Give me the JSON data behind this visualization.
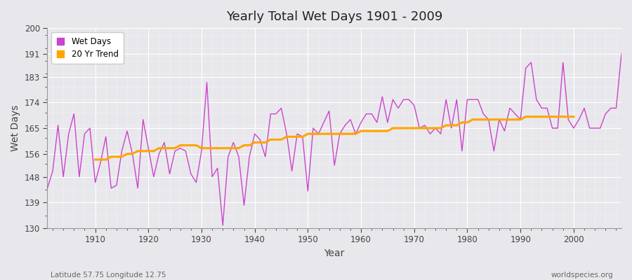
{
  "title": "Yearly Total Wet Days 1901 - 2009",
  "xlabel": "Year",
  "ylabel": "Wet Days",
  "subtitle_left": "Latitude 57.75 Longitude 12.75",
  "subtitle_right": "worldspecies.org",
  "ylim": [
    130,
    200
  ],
  "yticks": [
    130,
    139,
    148,
    156,
    165,
    174,
    183,
    191,
    200
  ],
  "xlim": [
    1901,
    2009
  ],
  "wet_days_color": "#CC44CC",
  "trend_color": "#FFA500",
  "bg_color": "#E8E8EC",
  "plot_bg_color": "#E8E8EC",
  "grid_color": "#FFFFFF",
  "years": [
    1901,
    1902,
    1903,
    1904,
    1905,
    1906,
    1907,
    1908,
    1909,
    1910,
    1911,
    1912,
    1913,
    1914,
    1915,
    1916,
    1917,
    1918,
    1919,
    1920,
    1921,
    1922,
    1923,
    1924,
    1925,
    1926,
    1927,
    1928,
    1929,
    1930,
    1931,
    1932,
    1933,
    1934,
    1935,
    1936,
    1937,
    1938,
    1939,
    1940,
    1941,
    1942,
    1943,
    1944,
    1945,
    1946,
    1947,
    1948,
    1949,
    1950,
    1951,
    1952,
    1953,
    1954,
    1955,
    1956,
    1957,
    1958,
    1959,
    1960,
    1961,
    1962,
    1963,
    1964,
    1965,
    1966,
    1967,
    1968,
    1969,
    1970,
    1971,
    1972,
    1973,
    1974,
    1975,
    1976,
    1977,
    1978,
    1979,
    1980,
    1981,
    1982,
    1983,
    1984,
    1985,
    1986,
    1987,
    1988,
    1989,
    1990,
    1991,
    1992,
    1993,
    1994,
    1995,
    1996,
    1997,
    1998,
    1999,
    2000,
    2001,
    2002,
    2003,
    2004,
    2005,
    2006,
    2007,
    2008,
    2009
  ],
  "wet_days": [
    144,
    150,
    166,
    148,
    163,
    170,
    148,
    163,
    165,
    146,
    153,
    162,
    144,
    145,
    157,
    164,
    156,
    144,
    168,
    158,
    148,
    156,
    160,
    149,
    157,
    158,
    157,
    149,
    146,
    157,
    181,
    148,
    151,
    131,
    155,
    160,
    155,
    138,
    155,
    163,
    161,
    155,
    170,
    170,
    172,
    163,
    150,
    163,
    162,
    143,
    165,
    163,
    167,
    171,
    152,
    163,
    166,
    168,
    163,
    167,
    170,
    170,
    167,
    176,
    167,
    175,
    172,
    175,
    175,
    173,
    165,
    166,
    163,
    165,
    163,
    175,
    165,
    175,
    157,
    175,
    175,
    175,
    170,
    168,
    157,
    168,
    164,
    172,
    170,
    168,
    186,
    188,
    175,
    172,
    172,
    165,
    165,
    188,
    168,
    165,
    168,
    172,
    165,
    165,
    165,
    170,
    172,
    172,
    191
  ],
  "trend_years": [
    1910,
    1911,
    1912,
    1913,
    1914,
    1915,
    1916,
    1917,
    1918,
    1919,
    1920,
    1921,
    1922,
    1923,
    1924,
    1925,
    1926,
    1927,
    1928,
    1929,
    1930,
    1931,
    1932,
    1933,
    1934,
    1935,
    1936,
    1937,
    1938,
    1939,
    1940,
    1941,
    1942,
    1943,
    1944,
    1945,
    1946,
    1947,
    1948,
    1949,
    1950,
    1951,
    1952,
    1953,
    1954,
    1955,
    1956,
    1957,
    1958,
    1959,
    1960,
    1961,
    1962,
    1963,
    1964,
    1965,
    1966,
    1967,
    1968,
    1969,
    1970,
    1971,
    1972,
    1973,
    1974,
    1975,
    1976,
    1977,
    1978,
    1979,
    1980,
    1981,
    1982,
    1983,
    1984,
    1985,
    1986,
    1987,
    1988,
    1989,
    1990,
    1991,
    1992,
    1993,
    1994,
    1995,
    1996,
    1997,
    1998,
    1999,
    2000
  ],
  "trend_values": [
    154,
    154,
    154,
    155,
    155,
    155,
    156,
    156,
    157,
    157,
    157,
    157,
    158,
    158,
    158,
    158,
    159,
    159,
    159,
    159,
    158,
    158,
    158,
    158,
    158,
    158,
    158,
    158,
    159,
    159,
    160,
    160,
    160,
    161,
    161,
    161,
    162,
    162,
    162,
    162,
    163,
    163,
    163,
    163,
    163,
    163,
    163,
    163,
    163,
    163,
    164,
    164,
    164,
    164,
    164,
    164,
    165,
    165,
    165,
    165,
    165,
    165,
    165,
    165,
    165,
    165,
    166,
    166,
    166,
    167,
    167,
    168,
    168,
    168,
    168,
    168,
    168,
    168,
    168,
    168,
    168,
    169,
    169,
    169,
    169,
    169,
    169,
    169,
    169,
    169,
    169
  ]
}
